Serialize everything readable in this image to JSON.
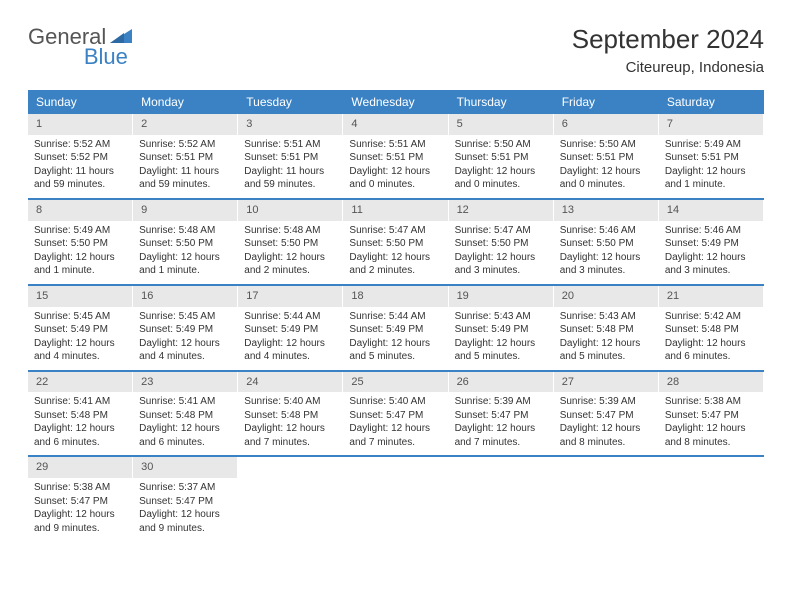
{
  "logo": {
    "general": "General",
    "blue": "Blue"
  },
  "title": "September 2024",
  "location": "Citeureup, Indonesia",
  "dayHeaders": [
    "Sunday",
    "Monday",
    "Tuesday",
    "Wednesday",
    "Thursday",
    "Friday",
    "Saturday"
  ],
  "colors": {
    "accent": "#3b82c4",
    "dayNumBg": "#e8e8e8",
    "text": "#333333",
    "background": "#ffffff"
  },
  "weeks": [
    [
      {
        "num": "1",
        "sunrise": "Sunrise: 5:52 AM",
        "sunset": "Sunset: 5:52 PM",
        "day1": "Daylight: 11 hours",
        "day2": "and 59 minutes."
      },
      {
        "num": "2",
        "sunrise": "Sunrise: 5:52 AM",
        "sunset": "Sunset: 5:51 PM",
        "day1": "Daylight: 11 hours",
        "day2": "and 59 minutes."
      },
      {
        "num": "3",
        "sunrise": "Sunrise: 5:51 AM",
        "sunset": "Sunset: 5:51 PM",
        "day1": "Daylight: 11 hours",
        "day2": "and 59 minutes."
      },
      {
        "num": "4",
        "sunrise": "Sunrise: 5:51 AM",
        "sunset": "Sunset: 5:51 PM",
        "day1": "Daylight: 12 hours",
        "day2": "and 0 minutes."
      },
      {
        "num": "5",
        "sunrise": "Sunrise: 5:50 AM",
        "sunset": "Sunset: 5:51 PM",
        "day1": "Daylight: 12 hours",
        "day2": "and 0 minutes."
      },
      {
        "num": "6",
        "sunrise": "Sunrise: 5:50 AM",
        "sunset": "Sunset: 5:51 PM",
        "day1": "Daylight: 12 hours",
        "day2": "and 0 minutes."
      },
      {
        "num": "7",
        "sunrise": "Sunrise: 5:49 AM",
        "sunset": "Sunset: 5:51 PM",
        "day1": "Daylight: 12 hours",
        "day2": "and 1 minute."
      }
    ],
    [
      {
        "num": "8",
        "sunrise": "Sunrise: 5:49 AM",
        "sunset": "Sunset: 5:50 PM",
        "day1": "Daylight: 12 hours",
        "day2": "and 1 minute."
      },
      {
        "num": "9",
        "sunrise": "Sunrise: 5:48 AM",
        "sunset": "Sunset: 5:50 PM",
        "day1": "Daylight: 12 hours",
        "day2": "and 1 minute."
      },
      {
        "num": "10",
        "sunrise": "Sunrise: 5:48 AM",
        "sunset": "Sunset: 5:50 PM",
        "day1": "Daylight: 12 hours",
        "day2": "and 2 minutes."
      },
      {
        "num": "11",
        "sunrise": "Sunrise: 5:47 AM",
        "sunset": "Sunset: 5:50 PM",
        "day1": "Daylight: 12 hours",
        "day2": "and 2 minutes."
      },
      {
        "num": "12",
        "sunrise": "Sunrise: 5:47 AM",
        "sunset": "Sunset: 5:50 PM",
        "day1": "Daylight: 12 hours",
        "day2": "and 3 minutes."
      },
      {
        "num": "13",
        "sunrise": "Sunrise: 5:46 AM",
        "sunset": "Sunset: 5:50 PM",
        "day1": "Daylight: 12 hours",
        "day2": "and 3 minutes."
      },
      {
        "num": "14",
        "sunrise": "Sunrise: 5:46 AM",
        "sunset": "Sunset: 5:49 PM",
        "day1": "Daylight: 12 hours",
        "day2": "and 3 minutes."
      }
    ],
    [
      {
        "num": "15",
        "sunrise": "Sunrise: 5:45 AM",
        "sunset": "Sunset: 5:49 PM",
        "day1": "Daylight: 12 hours",
        "day2": "and 4 minutes."
      },
      {
        "num": "16",
        "sunrise": "Sunrise: 5:45 AM",
        "sunset": "Sunset: 5:49 PM",
        "day1": "Daylight: 12 hours",
        "day2": "and 4 minutes."
      },
      {
        "num": "17",
        "sunrise": "Sunrise: 5:44 AM",
        "sunset": "Sunset: 5:49 PM",
        "day1": "Daylight: 12 hours",
        "day2": "and 4 minutes."
      },
      {
        "num": "18",
        "sunrise": "Sunrise: 5:44 AM",
        "sunset": "Sunset: 5:49 PM",
        "day1": "Daylight: 12 hours",
        "day2": "and 5 minutes."
      },
      {
        "num": "19",
        "sunrise": "Sunrise: 5:43 AM",
        "sunset": "Sunset: 5:49 PM",
        "day1": "Daylight: 12 hours",
        "day2": "and 5 minutes."
      },
      {
        "num": "20",
        "sunrise": "Sunrise: 5:43 AM",
        "sunset": "Sunset: 5:48 PM",
        "day1": "Daylight: 12 hours",
        "day2": "and 5 minutes."
      },
      {
        "num": "21",
        "sunrise": "Sunrise: 5:42 AM",
        "sunset": "Sunset: 5:48 PM",
        "day1": "Daylight: 12 hours",
        "day2": "and 6 minutes."
      }
    ],
    [
      {
        "num": "22",
        "sunrise": "Sunrise: 5:41 AM",
        "sunset": "Sunset: 5:48 PM",
        "day1": "Daylight: 12 hours",
        "day2": "and 6 minutes."
      },
      {
        "num": "23",
        "sunrise": "Sunrise: 5:41 AM",
        "sunset": "Sunset: 5:48 PM",
        "day1": "Daylight: 12 hours",
        "day2": "and 6 minutes."
      },
      {
        "num": "24",
        "sunrise": "Sunrise: 5:40 AM",
        "sunset": "Sunset: 5:48 PM",
        "day1": "Daylight: 12 hours",
        "day2": "and 7 minutes."
      },
      {
        "num": "25",
        "sunrise": "Sunrise: 5:40 AM",
        "sunset": "Sunset: 5:47 PM",
        "day1": "Daylight: 12 hours",
        "day2": "and 7 minutes."
      },
      {
        "num": "26",
        "sunrise": "Sunrise: 5:39 AM",
        "sunset": "Sunset: 5:47 PM",
        "day1": "Daylight: 12 hours",
        "day2": "and 7 minutes."
      },
      {
        "num": "27",
        "sunrise": "Sunrise: 5:39 AM",
        "sunset": "Sunset: 5:47 PM",
        "day1": "Daylight: 12 hours",
        "day2": "and 8 minutes."
      },
      {
        "num": "28",
        "sunrise": "Sunrise: 5:38 AM",
        "sunset": "Sunset: 5:47 PM",
        "day1": "Daylight: 12 hours",
        "day2": "and 8 minutes."
      }
    ],
    [
      {
        "num": "29",
        "sunrise": "Sunrise: 5:38 AM",
        "sunset": "Sunset: 5:47 PM",
        "day1": "Daylight: 12 hours",
        "day2": "and 9 minutes."
      },
      {
        "num": "30",
        "sunrise": "Sunrise: 5:37 AM",
        "sunset": "Sunset: 5:47 PM",
        "day1": "Daylight: 12 hours",
        "day2": "and 9 minutes."
      },
      null,
      null,
      null,
      null,
      null
    ]
  ]
}
